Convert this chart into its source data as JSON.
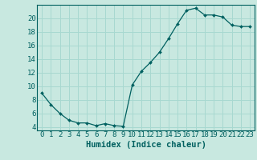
{
  "xlabel": "Humidex (Indice chaleur)",
  "ylabel": "",
  "x_values": [
    0,
    1,
    2,
    3,
    4,
    5,
    6,
    7,
    8,
    9,
    10,
    11,
    12,
    13,
    14,
    15,
    16,
    17,
    18,
    19,
    20,
    21,
    22,
    23
  ],
  "y_values": [
    9.0,
    7.3,
    6.0,
    5.0,
    4.6,
    4.6,
    4.2,
    4.5,
    4.2,
    4.1,
    10.2,
    12.2,
    13.5,
    15.0,
    17.0,
    19.2,
    21.2,
    21.5,
    20.5,
    20.5,
    20.2,
    19.0,
    18.8,
    18.8
  ],
  "line_color": "#006060",
  "marker_color": "#006060",
  "bg_color": "#c8e8e0",
  "grid_color": "#a8d8d0",
  "axis_color": "#006060",
  "tick_color": "#006060",
  "ylim": [
    3.5,
    22
  ],
  "yticks": [
    4,
    6,
    8,
    10,
    12,
    14,
    16,
    18,
    20
  ],
  "xlim": [
    -0.5,
    23.5
  ],
  "xlabel_fontsize": 7.5,
  "tick_fontsize": 6.5
}
